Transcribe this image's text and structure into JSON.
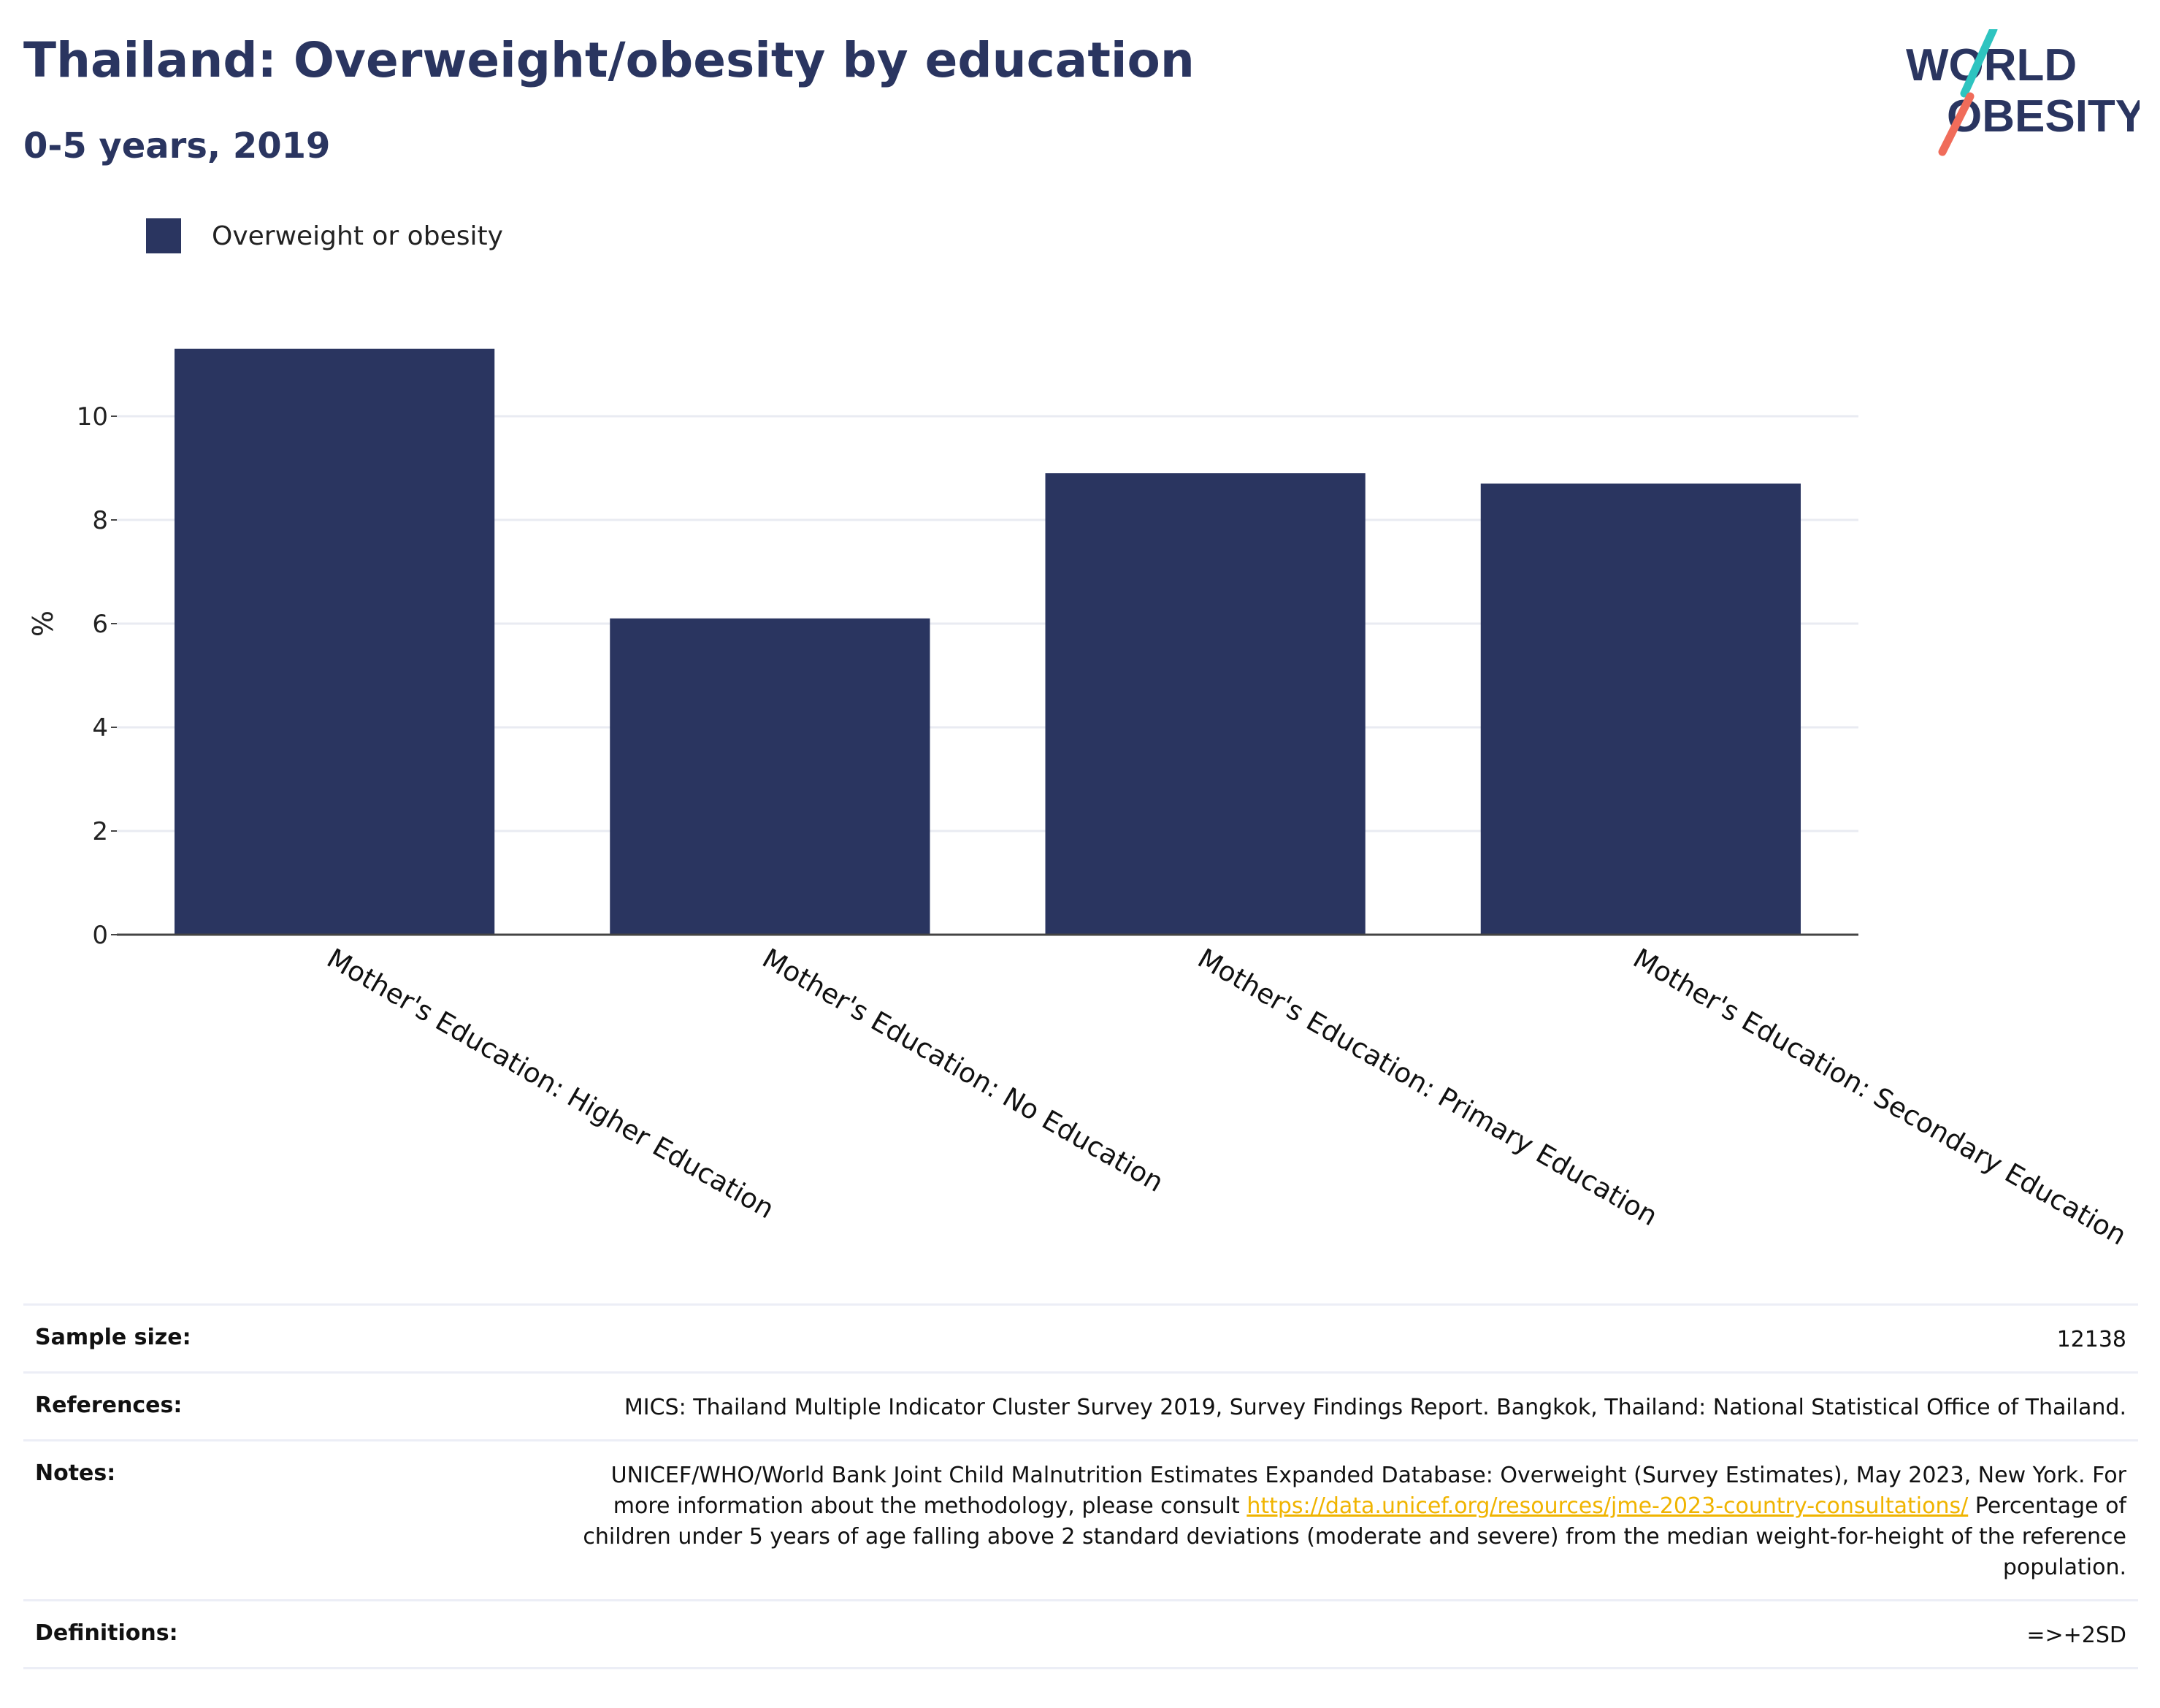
{
  "header": {
    "title": "Thailand: Overweight/obesity by education",
    "subtitle": "0-5 years, 2019"
  },
  "logo": {
    "line1": "WORLD",
    "line2": "OBESITY",
    "accent_teal": "#2ec4c0",
    "accent_coral": "#f06c5a"
  },
  "legend": {
    "label": "Overweight or obesity",
    "color": "#2a3560"
  },
  "chart_data": {
    "type": "bar",
    "categories": [
      "Mother's Education: Higher Education",
      "Mother's Education: No Education",
      "Mother's Education: Primary Education",
      "Mother's Education: Secondary Education"
    ],
    "series": [
      {
        "name": "Overweight or obesity",
        "values": [
          11.3,
          6.1,
          8.9,
          8.7
        ],
        "color": "#2a3560"
      }
    ],
    "ylabel": "%",
    "xlabel": "",
    "ylim": [
      0,
      12
    ],
    "yticks": [
      0,
      2,
      4,
      6,
      8,
      10
    ],
    "grid": true
  },
  "meta": {
    "sample_size": {
      "label": "Sample size:",
      "value": "12138"
    },
    "references": {
      "label": "References:",
      "value": "MICS: Thailand Multiple Indicator Cluster Survey 2019, Survey Findings Report. Bangkok, Thailand: National Statistical Office of Thailand."
    },
    "notes": {
      "label": "Notes:",
      "text_before": "UNICEF/WHO/World Bank Joint Child Malnutrition Estimates Expanded Database: Overweight (Survey Estimates), May 2023, New York. For more information about the methodology, please consult ",
      "link": "https://data.unicef.org/resources/jme-2023-country-consultations/",
      "text_after": " Percentage of children under 5 years of age falling above 2 standard deviations (moderate and severe) from the median weight-for-height of the reference population."
    },
    "definitions": {
      "label": "Definitions:",
      "value": "=>+2SD"
    }
  }
}
